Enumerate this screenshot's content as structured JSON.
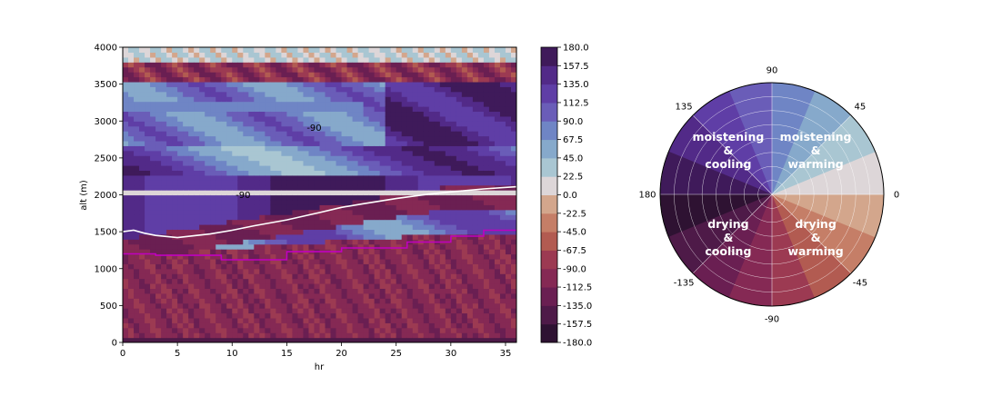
{
  "chart_data": [
    {
      "type": "heatmap",
      "title": "",
      "xlabel": "hr",
      "ylabel": "alt (m)",
      "xlim": [
        0,
        36
      ],
      "ylim": [
        0,
        4000
      ],
      "x_ticks": [
        "0",
        "5",
        "10",
        "15",
        "20",
        "25",
        "30",
        "35"
      ],
      "y_ticks": [
        "0",
        "500",
        "1000",
        "1500",
        "2000",
        "2500",
        "3000",
        "3500",
        "4000"
      ],
      "contour_labels": [
        {
          "text": "-90",
          "x": 17.5,
          "y": 2870
        },
        {
          "text": "-90",
          "x": 11.0,
          "y": 1960
        }
      ],
      "colorbar": {
        "min": -180.0,
        "max": 180.0,
        "levels": [
          "-180.0",
          "-157.5",
          "-135.0",
          "-112.5",
          "-90.0",
          "-67.5",
          "-45.0",
          "-22.5",
          "0.0",
          "22.5",
          "45.0",
          "67.5",
          "90.0",
          "112.5",
          "135.0",
          "157.5",
          "180.0"
        ],
        "colors": [
          "#2e1232",
          "#4e1a48",
          "#6a1f52",
          "#852954",
          "#9c3a52",
          "#b25b51",
          "#c57e67",
          "#d3a68c",
          "#ddd6d8",
          "#a9c6d2",
          "#86a9cb",
          "#6f85c5",
          "#6a5db8",
          "#5f3ea6",
          "#522a88",
          "#3f1a5a"
        ]
      },
      "series": [
        {
          "color": "#ffffff",
          "x": [
            0,
            1,
            2,
            3,
            5,
            8,
            10,
            12,
            15,
            18,
            20,
            22,
            25,
            28,
            30,
            33,
            36
          ],
          "y": [
            1500,
            1520,
            1480,
            1450,
            1420,
            1470,
            1520,
            1580,
            1660,
            1760,
            1830,
            1880,
            1950,
            2010,
            2040,
            2080,
            2110
          ]
        },
        {
          "color": "#c000c0",
          "x": [
            0,
            3,
            3.01,
            9,
            9.01,
            15,
            15.01,
            20,
            20.01,
            26,
            26.01,
            30,
            30.01,
            33,
            33.01,
            36
          ],
          "y": [
            1200,
            1200,
            1180,
            1180,
            1120,
            1120,
            1230,
            1230,
            1280,
            1280,
            1360,
            1360,
            1440,
            1440,
            1520,
            1520
          ]
        }
      ]
    },
    {
      "type": "pie",
      "theta_ticks": [
        {
          "angle": 0,
          "label": "0"
        },
        {
          "angle": 45,
          "label": "45"
        },
        {
          "angle": 90,
          "label": "90"
        },
        {
          "angle": 135,
          "label": "135"
        },
        {
          "angle": 180,
          "label": "180"
        },
        {
          "angle": -135,
          "label": "-135"
        },
        {
          "angle": -90,
          "label": "-90"
        },
        {
          "angle": -45,
          "label": "-45"
        }
      ],
      "quadrant_labels": [
        {
          "text": [
            "moistening",
            "&",
            "warming"
          ],
          "angle": 45
        },
        {
          "text": [
            "moistening",
            "&",
            "cooling"
          ],
          "angle": 135
        },
        {
          "text": [
            "drying",
            "&",
            "cooling"
          ],
          "angle": -135
        },
        {
          "text": [
            "drying",
            "&",
            "warming"
          ],
          "angle": -45
        }
      ]
    }
  ]
}
